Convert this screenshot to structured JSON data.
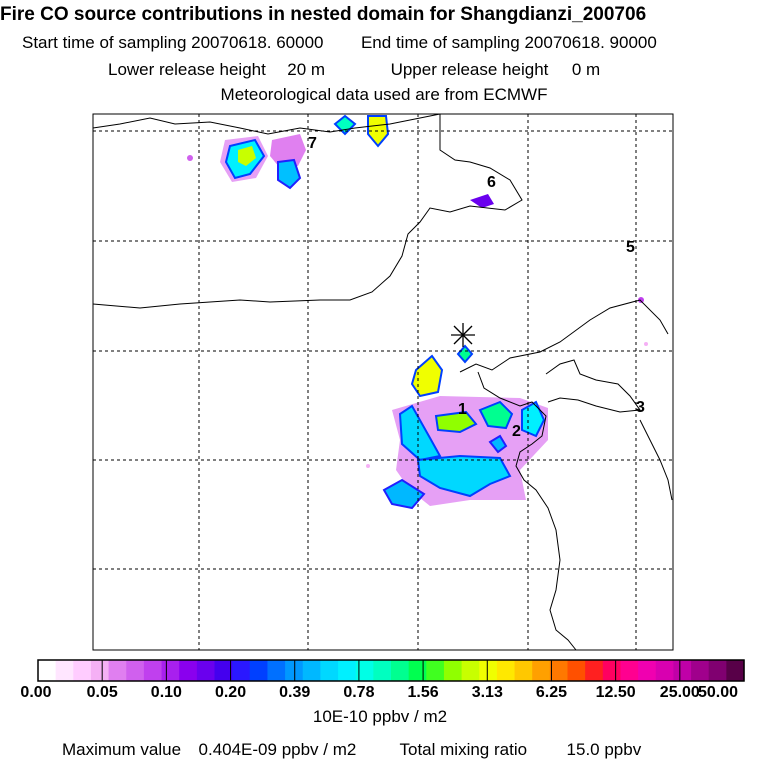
{
  "header": {
    "title": "Fire CO source contributions in nested domain for Shangdianzi_200706",
    "start_label": "Start time of sampling",
    "start_value": "20070618. 60000",
    "end_label": "End time of sampling",
    "end_value": "20070618. 90000",
    "lower_label": "Lower release height",
    "lower_value": "20 m",
    "upper_label": "Upper release height",
    "upper_value": "0 m",
    "met": "Meteorological data used are from ECMWF"
  },
  "chart_data": {
    "type": "heatmap",
    "title": "Fire CO source contributions in nested domain for Shangdianzi_200706",
    "colorbar": {
      "ticks": [
        "0.00",
        "0.05",
        "0.10",
        "0.20",
        "0.39",
        "0.78",
        "1.56",
        "3.13",
        "6.25",
        "12.50",
        "25.00",
        "50.00"
      ],
      "units": "10E-10 ppbv / m2",
      "colors": [
        "#ffffff",
        "#ffe6ff",
        "#ffccff",
        "#f5b0f5",
        "#e07ff0",
        "#d060ee",
        "#c040ee",
        "#a820ee",
        "#8a00ee",
        "#6a00ee",
        "#4400ee",
        "#2a18ff",
        "#0040ff",
        "#0070ff",
        "#0098ff",
        "#00b8ff",
        "#00d8ff",
        "#00f0ff",
        "#00ffe6",
        "#00ffc0",
        "#00ff90",
        "#00ff50",
        "#40ff20",
        "#90ff00",
        "#c8ff00",
        "#f0ff00",
        "#ffe800",
        "#ffc800",
        "#ffa000",
        "#ff7800",
        "#ff5000",
        "#ff2020",
        "#ff0060",
        "#ff0090",
        "#f000b0",
        "#d800b0",
        "#c000a8",
        "#a0008c",
        "#800070",
        "#580048"
      ]
    },
    "site_labels": [
      "1",
      "2",
      "3",
      "5",
      "6",
      "7"
    ],
    "max_value_label": "Maximum value",
    "max_value": "0.404E-09 ppbv / m2",
    "total_label": "Total mixing ratio",
    "total_value": "15.0 ppbv"
  }
}
